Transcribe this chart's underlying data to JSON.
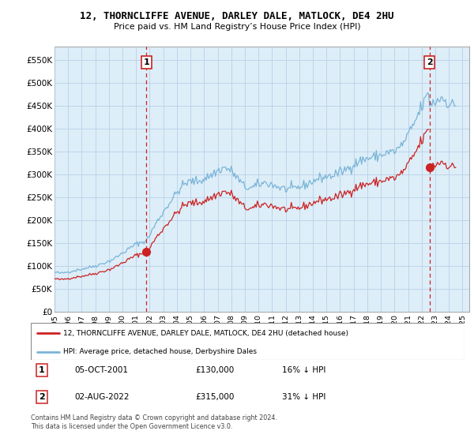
{
  "title_line1": "12, THORNCLIFFE AVENUE, DARLEY DALE, MATLOCK, DE4 2HU",
  "title_line2": "Price paid vs. HM Land Registry’s House Price Index (HPI)",
  "ylabel_ticks": [
    "£0",
    "£50K",
    "£100K",
    "£150K",
    "£200K",
    "£250K",
    "£300K",
    "£350K",
    "£400K",
    "£450K",
    "£500K",
    "£550K"
  ],
  "ytick_values": [
    0,
    50000,
    100000,
    150000,
    200000,
    250000,
    300000,
    350000,
    400000,
    450000,
    500000,
    550000
  ],
  "ylim": [
    0,
    580000
  ],
  "xlim_start": 1995.0,
  "xlim_end": 2025.5,
  "hpi_color": "#7ab4d8",
  "hpi_fill_color": "#ddeef8",
  "price_color": "#cc2222",
  "vline_color": "#cc2222",
  "background_color": "#ffffff",
  "grid_color": "#ccddee",
  "purchase1_x": 2001.75,
  "purchase1_y": 130000,
  "purchase1_label": "1",
  "purchase2_x": 2022.58,
  "purchase2_y": 315000,
  "purchase2_label": "2",
  "legend_house": "12, THORNCLIFFE AVENUE, DARLEY DALE, MATLOCK, DE4 2HU (detached house)",
  "legend_hpi": "HPI: Average price, detached house, Derbyshire Dales",
  "table_row1": [
    "1",
    "05-OCT-2001",
    "£130,000",
    "16% ↓ HPI"
  ],
  "table_row2": [
    "2",
    "02-AUG-2022",
    "£315,000",
    "31% ↓ HPI"
  ],
  "footnote": "Contains HM Land Registry data © Crown copyright and database right 2024.\nThis data is licensed under the Open Government Licence v3.0.",
  "xtick_years": [
    1995,
    1996,
    1997,
    1998,
    1999,
    2000,
    2001,
    2002,
    2003,
    2004,
    2005,
    2006,
    2007,
    2008,
    2009,
    2010,
    2011,
    2012,
    2013,
    2014,
    2015,
    2016,
    2017,
    2018,
    2019,
    2020,
    2021,
    2022,
    2023,
    2024,
    2025
  ]
}
